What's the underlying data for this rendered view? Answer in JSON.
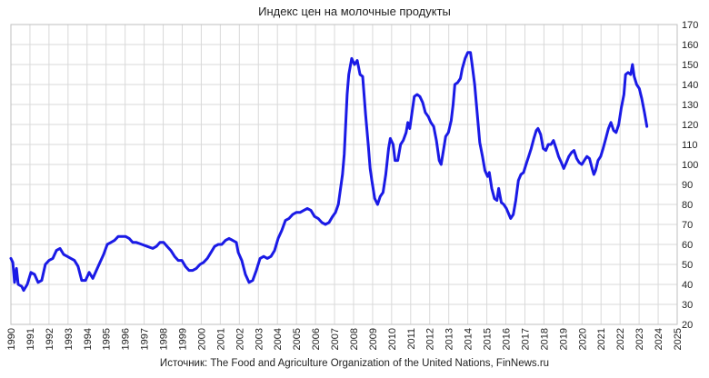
{
  "chart_data": {
    "type": "line",
    "title": "Индекс цен на молочные продукты",
    "source": "Источник: The Food and Agriculture Organization of the United Nations, FinNews.ru",
    "color": "#1a1ae6",
    "grid": true,
    "xlim": [
      1990,
      2025
    ],
    "xticks": [
      1990,
      1991,
      1992,
      1993,
      1994,
      1995,
      1996,
      1997,
      1998,
      1999,
      2000,
      2001,
      2002,
      2003,
      2004,
      2005,
      2006,
      2007,
      2008,
      2009,
      2010,
      2011,
      2012,
      2013,
      2014,
      2015,
      2016,
      2017,
      2018,
      2019,
      2020,
      2021,
      2022,
      2023,
      2024,
      2025
    ],
    "ylim": [
      20,
      170
    ],
    "yticks": [
      20,
      30,
      40,
      50,
      60,
      70,
      80,
      90,
      100,
      110,
      120,
      130,
      140,
      150,
      160,
      170
    ],
    "x": [
      1990.0,
      1990.1,
      1990.19,
      1990.29,
      1990.38,
      1990.57,
      1990.67,
      1990.86,
      1991.05,
      1991.24,
      1991.43,
      1991.62,
      1991.81,
      1992.0,
      1992.2,
      1992.39,
      1992.58,
      1992.77,
      1992.96,
      1993.15,
      1993.34,
      1993.53,
      1993.72,
      1993.92,
      1994.11,
      1994.3,
      1994.49,
      1994.68,
      1994.87,
      1995.06,
      1995.25,
      1995.44,
      1995.64,
      1995.83,
      1996.02,
      1996.21,
      1996.4,
      1996.59,
      1996.88,
      1997.16,
      1997.45,
      1997.64,
      1997.83,
      1998.02,
      1998.21,
      1998.4,
      1998.6,
      1998.79,
      1998.98,
      1999.17,
      1999.36,
      1999.55,
      1999.74,
      1999.93,
      2000.12,
      2000.32,
      2000.51,
      2000.7,
      2000.89,
      2001.08,
      2001.27,
      2001.46,
      2001.65,
      2001.84,
      2001.94,
      2002.13,
      2002.32,
      2002.51,
      2002.7,
      2002.89,
      2003.09,
      2003.28,
      2003.47,
      2003.66,
      2003.85,
      2004.04,
      2004.23,
      2004.42,
      2004.61,
      2004.8,
      2004.99,
      2005.19,
      2005.38,
      2005.57,
      2005.76,
      2005.95,
      2006.14,
      2006.33,
      2006.52,
      2006.71,
      2006.9,
      2007.05,
      2007.2,
      2007.42,
      2007.51,
      2007.66,
      2007.75,
      2007.9,
      2008.05,
      2008.19,
      2008.34,
      2008.48,
      2008.63,
      2008.77,
      2008.87,
      2008.96,
      2009.11,
      2009.26,
      2009.4,
      2009.55,
      2009.69,
      2009.84,
      2009.93,
      2010.08,
      2010.18,
      2010.32,
      2010.47,
      2010.61,
      2010.76,
      2010.85,
      2010.95,
      2011.1,
      2011.19,
      2011.34,
      2011.48,
      2011.63,
      2011.77,
      2011.92,
      2012.06,
      2012.21,
      2012.35,
      2012.5,
      2012.6,
      2012.74,
      2012.84,
      2012.98,
      2013.13,
      2013.23,
      2013.32,
      2013.47,
      2013.61,
      2013.71,
      2013.86,
      2014.0,
      2014.14,
      2014.23,
      2014.36,
      2014.5,
      2014.63,
      2014.77,
      2014.9,
      2015.04,
      2015.13,
      2015.26,
      2015.4,
      2015.53,
      2015.62,
      2015.76,
      2015.89,
      2016.03,
      2016.16,
      2016.25,
      2016.39,
      2016.52,
      2016.66,
      2016.79,
      2016.93,
      2017.06,
      2017.2,
      2017.33,
      2017.47,
      2017.6,
      2017.69,
      2017.83,
      2017.96,
      2018.1,
      2018.23,
      2018.37,
      2018.5,
      2018.64,
      2018.77,
      2018.91,
      2019.04,
      2019.18,
      2019.31,
      2019.45,
      2019.58,
      2019.72,
      2019.85,
      2019.99,
      2020.12,
      2020.26,
      2020.39,
      2020.53,
      2020.62,
      2020.71,
      2020.84,
      2020.98,
      2021.11,
      2021.25,
      2021.39,
      2021.52,
      2021.66,
      2021.79,
      2021.93,
      2022.06,
      2022.2,
      2022.29,
      2022.42,
      2022.56,
      2022.65,
      2022.74,
      2022.87,
      2023.01,
      2023.14,
      2023.28,
      2023.41
    ],
    "values": [
      53,
      51,
      41,
      48,
      40,
      39,
      37,
      40,
      46,
      45,
      41,
      42,
      50,
      52,
      53,
      57,
      58,
      55,
      54,
      53,
      52,
      49,
      42,
      42,
      46,
      43,
      47,
      51,
      55,
      60,
      61,
      62,
      64,
      64,
      64,
      63,
      61,
      61,
      60,
      59,
      58,
      59,
      61,
      61,
      59,
      57,
      54,
      52,
      52,
      49,
      47,
      47,
      48,
      50,
      51,
      53,
      56,
      59,
      60,
      60,
      62,
      63,
      62,
      61,
      56,
      52,
      45,
      41,
      42,
      47,
      53,
      54,
      53,
      54,
      57,
      63,
      67,
      72,
      73,
      75,
      76,
      76,
      77,
      78,
      77,
      74,
      73,
      71,
      70,
      71,
      74,
      76,
      80,
      95,
      105,
      135,
      145,
      153,
      150,
      152,
      145,
      144,
      125,
      110,
      98,
      92,
      83,
      80,
      84,
      86,
      95,
      108,
      113,
      110,
      102,
      102,
      110,
      112,
      116,
      121,
      118,
      128,
      134,
      135,
      134,
      131,
      126,
      124,
      121,
      119,
      112,
      102,
      100,
      108,
      114,
      116,
      122,
      130,
      140,
      141,
      143,
      148,
      153,
      156,
      156,
      150,
      140,
      125,
      111,
      104,
      97,
      94,
      96,
      88,
      83,
      82,
      88,
      81,
      80,
      78,
      75,
      73,
      75,
      82,
      92,
      95,
      96,
      100,
      104,
      108,
      113,
      117,
      118,
      115,
      108,
      107,
      110,
      110,
      112,
      108,
      104,
      101,
      98,
      101,
      104,
      106,
      107,
      103,
      101,
      100,
      102,
      104,
      103,
      98,
      95,
      97,
      102,
      104,
      108,
      113,
      118,
      121,
      117,
      116,
      120,
      128,
      135,
      145,
      146,
      145,
      150,
      144,
      140,
      138,
      133,
      126,
      119
    ]
  }
}
